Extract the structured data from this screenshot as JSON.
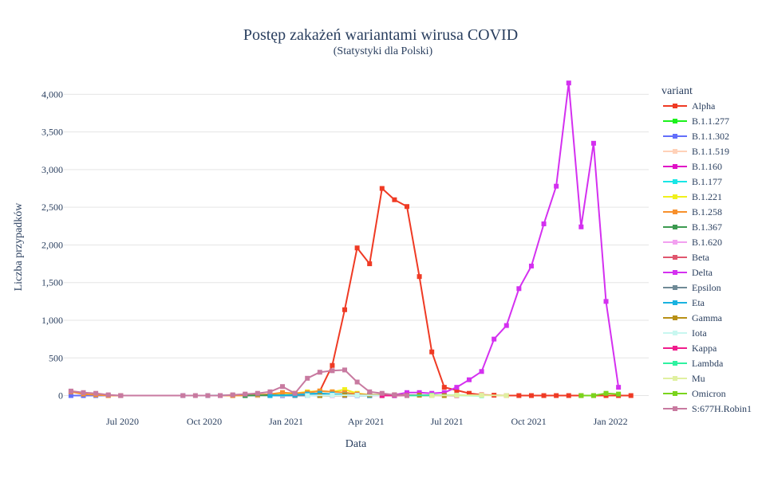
{
  "chart_data": {
    "type": "line",
    "title": "Postęp zakażeń wariantami wirusa COVID",
    "subtitle": "(Statystyki dla Polski)",
    "xlabel": "Data",
    "ylabel": "Liczba przypadków",
    "legend_title": "variant",
    "legend_position": "right",
    "grid": true,
    "ylim": [
      -100,
      4300
    ],
    "xlim": [
      "2020-04-26",
      "2022-02-13"
    ],
    "y_ticks": [
      {
        "value": 0,
        "label": "0"
      },
      {
        "value": 500,
        "label": "500"
      },
      {
        "value": 1000,
        "label": "1,000"
      },
      {
        "value": 1500,
        "label": "1,500"
      },
      {
        "value": 2000,
        "label": "2,000"
      },
      {
        "value": 2500,
        "label": "2,500"
      },
      {
        "value": 3000,
        "label": "3,000"
      },
      {
        "value": 3500,
        "label": "3,500"
      },
      {
        "value": 4000,
        "label": "4,000"
      }
    ],
    "x_ticks": [
      {
        "value": "2020-07-01",
        "label": "Jul 2020"
      },
      {
        "value": "2020-10-01",
        "label": "Oct 2020"
      },
      {
        "value": "2021-01-01",
        "label": "Jan 2021"
      },
      {
        "value": "2021-04-01",
        "label": "Apr 2021"
      },
      {
        "value": "2021-07-01",
        "label": "Jul 2021"
      },
      {
        "value": "2021-10-01",
        "label": "Oct 2021"
      },
      {
        "value": "2022-01-01",
        "label": "Jan 2022"
      }
    ],
    "x": [
      "2020-05-04",
      "2020-05-18",
      "2020-06-01",
      "2020-06-15",
      "2020-06-29",
      "2020-07-13",
      "2020-07-27",
      "2020-08-10",
      "2020-08-24",
      "2020-09-07",
      "2020-09-21",
      "2020-10-05",
      "2020-10-19",
      "2020-11-02",
      "2020-11-16",
      "2020-11-30",
      "2020-12-14",
      "2020-12-28",
      "2021-01-11",
      "2021-01-25",
      "2021-02-08",
      "2021-02-22",
      "2021-03-08",
      "2021-03-22",
      "2021-04-05",
      "2021-04-19",
      "2021-05-03",
      "2021-05-17",
      "2021-05-31",
      "2021-06-14",
      "2021-06-28",
      "2021-07-12",
      "2021-07-26",
      "2021-08-09",
      "2021-08-23",
      "2021-09-06",
      "2021-09-20",
      "2021-10-04",
      "2021-10-18",
      "2021-11-01",
      "2021-11-15",
      "2021-11-29",
      "2021-12-13",
      "2021-12-27",
      "2022-01-10",
      "2022-01-24"
    ],
    "series": [
      {
        "name": "Alpha",
        "color": "#ef3a24",
        "points": [
          [
            "2020-12-14",
            5
          ],
          [
            "2020-12-28",
            10
          ],
          [
            "2021-01-11",
            20
          ],
          [
            "2021-01-25",
            40
          ],
          [
            "2021-02-08",
            60
          ],
          [
            "2021-02-22",
            400
          ],
          [
            "2021-03-08",
            1140
          ],
          [
            "2021-03-22",
            1960
          ],
          [
            "2021-04-05",
            1750
          ],
          [
            "2021-04-19",
            2750
          ],
          [
            "2021-05-03",
            2600
          ],
          [
            "2021-05-17",
            2510
          ],
          [
            "2021-05-31",
            1580
          ],
          [
            "2021-06-14",
            580
          ],
          [
            "2021-06-28",
            110
          ],
          [
            "2021-07-12",
            70
          ],
          [
            "2021-07-26",
            30
          ],
          [
            "2021-08-09",
            10
          ],
          [
            "2021-08-23",
            5
          ],
          [
            "2021-09-06",
            0
          ],
          [
            "2021-09-20",
            0
          ],
          [
            "2021-10-04",
            0
          ],
          [
            "2021-10-18",
            0
          ],
          [
            "2021-11-01",
            0
          ],
          [
            "2021-11-15",
            0
          ],
          [
            "2021-11-29",
            0
          ],
          [
            "2021-12-13",
            0
          ],
          [
            "2021-12-27",
            0
          ],
          [
            "2022-01-10",
            0
          ],
          [
            "2022-01-24",
            0
          ]
        ]
      },
      {
        "name": "B.1.1.277",
        "color": "#1cf21c",
        "points": [
          [
            "2020-11-16",
            0
          ],
          [
            "2020-12-14",
            5
          ],
          [
            "2021-01-11",
            10
          ],
          [
            "2021-02-08",
            10
          ],
          [
            "2021-03-08",
            5
          ],
          [
            "2021-04-05",
            0
          ],
          [
            "2021-05-03",
            0
          ]
        ]
      },
      {
        "name": "B.1.1.302",
        "color": "#636efa",
        "points": [
          [
            "2020-05-04",
            0
          ],
          [
            "2020-05-18",
            0
          ],
          [
            "2020-06-01",
            0
          ],
          [
            "2020-06-15",
            0
          ],
          [
            "2020-06-29",
            0
          ],
          [
            "2020-09-07",
            0
          ],
          [
            "2020-10-05",
            0
          ],
          [
            "2020-11-02",
            0
          ],
          [
            "2020-11-16",
            0
          ],
          [
            "2020-11-30",
            0
          ],
          [
            "2020-12-14",
            0
          ],
          [
            "2020-12-28",
            0
          ],
          [
            "2021-01-11",
            0
          ],
          [
            "2021-01-25",
            0
          ],
          [
            "2021-02-08",
            0
          ],
          [
            "2021-02-22",
            0
          ],
          [
            "2021-03-08",
            0
          ],
          [
            "2021-03-22",
            0
          ],
          [
            "2021-04-05",
            0
          ],
          [
            "2021-04-19",
            0
          ],
          [
            "2021-05-03",
            0
          ]
        ]
      },
      {
        "name": "B.1.1.519",
        "color": "#ffd1b8",
        "points": [
          [
            "2020-11-30",
            0
          ],
          [
            "2020-12-14",
            5
          ],
          [
            "2020-12-28",
            10
          ],
          [
            "2021-01-11",
            20
          ],
          [
            "2021-01-25",
            30
          ],
          [
            "2021-02-08",
            30
          ],
          [
            "2021-02-22",
            20
          ],
          [
            "2021-03-08",
            10
          ],
          [
            "2021-03-22",
            5
          ],
          [
            "2021-04-05",
            0
          ]
        ]
      },
      {
        "name": "B.1.160",
        "color": "#e010c6",
        "points": [
          [
            "2020-10-19",
            0
          ],
          [
            "2020-11-16",
            5
          ],
          [
            "2020-12-14",
            10
          ],
          [
            "2021-01-11",
            15
          ],
          [
            "2021-02-08",
            10
          ],
          [
            "2021-03-08",
            5
          ],
          [
            "2021-04-05",
            0
          ],
          [
            "2021-05-03",
            0
          ]
        ]
      },
      {
        "name": "B.1.177",
        "color": "#19e6e6",
        "points": [
          [
            "2020-10-05",
            0
          ],
          [
            "2020-11-02",
            5
          ],
          [
            "2020-11-30",
            10
          ],
          [
            "2020-12-28",
            20
          ],
          [
            "2021-01-25",
            30
          ],
          [
            "2021-02-22",
            20
          ],
          [
            "2021-03-22",
            10
          ],
          [
            "2021-04-19",
            0
          ]
        ]
      },
      {
        "name": "B.1.221",
        "color": "#f0f01c",
        "points": [
          [
            "2020-11-02",
            0
          ],
          [
            "2020-12-14",
            10
          ],
          [
            "2021-01-11",
            30
          ],
          [
            "2021-01-25",
            50
          ],
          [
            "2021-02-08",
            60
          ],
          [
            "2021-02-22",
            50
          ],
          [
            "2021-03-08",
            80
          ],
          [
            "2021-03-22",
            30
          ],
          [
            "2021-04-05",
            10
          ],
          [
            "2021-04-19",
            0
          ]
        ]
      },
      {
        "name": "B.1.258",
        "color": "#f7902c",
        "points": [
          [
            "2020-05-04",
            50
          ],
          [
            "2020-05-18",
            20
          ],
          [
            "2020-06-01",
            10
          ],
          [
            "2020-06-15",
            0
          ],
          [
            "2020-06-29",
            0
          ],
          [
            "2020-11-02",
            0
          ],
          [
            "2020-11-30",
            10
          ],
          [
            "2020-12-14",
            20
          ],
          [
            "2020-12-28",
            40
          ],
          [
            "2021-01-11",
            30
          ],
          [
            "2021-01-25",
            40
          ],
          [
            "2021-02-08",
            60
          ],
          [
            "2021-02-22",
            50
          ],
          [
            "2021-03-08",
            40
          ],
          [
            "2021-03-22",
            20
          ],
          [
            "2021-04-05",
            10
          ],
          [
            "2021-04-19",
            0
          ]
        ]
      },
      {
        "name": "B.1.367",
        "color": "#3c9a50",
        "points": [
          [
            "2020-11-16",
            0
          ],
          [
            "2020-12-14",
            5
          ],
          [
            "2021-01-11",
            5
          ],
          [
            "2021-02-08",
            0
          ]
        ]
      },
      {
        "name": "B.1.620",
        "color": "#f2a0f0",
        "points": [
          [
            "2021-02-22",
            0
          ],
          [
            "2021-03-22",
            5
          ],
          [
            "2021-04-19",
            10
          ],
          [
            "2021-05-17",
            5
          ],
          [
            "2021-06-14",
            0
          ]
        ]
      },
      {
        "name": "Beta",
        "color": "#e0566e",
        "points": [
          [
            "2021-01-25",
            0
          ],
          [
            "2021-02-22",
            5
          ],
          [
            "2021-03-22",
            10
          ],
          [
            "2021-04-19",
            5
          ],
          [
            "2021-05-17",
            0
          ]
        ]
      },
      {
        "name": "Delta",
        "color": "#d430f0",
        "points": [
          [
            "2021-04-05",
            0
          ],
          [
            "2021-04-19",
            0
          ],
          [
            "2021-05-03",
            10
          ],
          [
            "2021-05-17",
            40
          ],
          [
            "2021-05-31",
            40
          ],
          [
            "2021-06-14",
            30
          ],
          [
            "2021-06-28",
            40
          ],
          [
            "2021-07-12",
            110
          ],
          [
            "2021-07-26",
            210
          ],
          [
            "2021-08-09",
            320
          ],
          [
            "2021-08-23",
            750
          ],
          [
            "2021-09-06",
            930
          ],
          [
            "2021-09-20",
            1420
          ],
          [
            "2021-10-04",
            1720
          ],
          [
            "2021-10-18",
            2280
          ],
          [
            "2021-11-01",
            2780
          ],
          [
            "2021-11-15",
            4150
          ],
          [
            "2021-11-29",
            2240
          ],
          [
            "2021-12-13",
            3350
          ],
          [
            "2021-12-27",
            1250
          ],
          [
            "2022-01-10",
            110
          ]
        ]
      },
      {
        "name": "Epsilon",
        "color": "#6f8a96",
        "points": [
          [
            "2021-01-11",
            0
          ],
          [
            "2021-02-08",
            5
          ],
          [
            "2021-03-08",
            5
          ],
          [
            "2021-04-05",
            0
          ]
        ]
      },
      {
        "name": "Eta",
        "color": "#19b2e0",
        "points": [
          [
            "2020-12-14",
            0
          ],
          [
            "2021-01-11",
            10
          ],
          [
            "2021-01-25",
            20
          ],
          [
            "2021-02-08",
            30
          ],
          [
            "2021-02-22",
            20
          ],
          [
            "2021-03-08",
            10
          ],
          [
            "2021-03-22",
            5
          ],
          [
            "2021-04-05",
            0
          ]
        ]
      },
      {
        "name": "Gamma",
        "color": "#b89016",
        "points": [
          [
            "2021-02-08",
            0
          ],
          [
            "2021-03-08",
            5
          ],
          [
            "2021-04-05",
            10
          ],
          [
            "2021-05-03",
            10
          ],
          [
            "2021-05-31",
            5
          ],
          [
            "2021-06-28",
            0
          ]
        ]
      },
      {
        "name": "Iota",
        "color": "#c8f7f0",
        "points": [
          [
            "2021-01-25",
            0
          ],
          [
            "2021-02-22",
            5
          ],
          [
            "2021-03-22",
            5
          ],
          [
            "2021-04-19",
            0
          ]
        ]
      },
      {
        "name": "Kappa",
        "color": "#f01c8c",
        "points": [
          [
            "2021-04-19",
            0
          ],
          [
            "2021-05-17",
            5
          ],
          [
            "2021-06-14",
            5
          ],
          [
            "2021-07-12",
            0
          ]
        ]
      },
      {
        "name": "Lambda",
        "color": "#2ef2a0",
        "points": [
          [
            "2021-05-17",
            0
          ],
          [
            "2021-06-14",
            5
          ],
          [
            "2021-07-12",
            5
          ],
          [
            "2021-08-09",
            0
          ]
        ]
      },
      {
        "name": "Mu",
        "color": "#e0f0a0",
        "points": [
          [
            "2021-06-14",
            0
          ],
          [
            "2021-07-12",
            5
          ],
          [
            "2021-08-09",
            5
          ],
          [
            "2021-09-06",
            0
          ]
        ]
      },
      {
        "name": "Omicron",
        "color": "#7ad41c",
        "points": [
          [
            "2021-11-29",
            0
          ],
          [
            "2021-12-13",
            0
          ],
          [
            "2021-12-27",
            30
          ],
          [
            "2022-01-10",
            20
          ]
        ]
      },
      {
        "name": "S:677H.Robin1",
        "color": "#c87aa0",
        "points": [
          [
            "2020-05-04",
            60
          ],
          [
            "2020-05-18",
            40
          ],
          [
            "2020-06-01",
            30
          ],
          [
            "2020-06-15",
            10
          ],
          [
            "2020-06-29",
            0
          ],
          [
            "2020-09-07",
            0
          ],
          [
            "2020-09-21",
            0
          ],
          [
            "2020-10-05",
            0
          ],
          [
            "2020-10-19",
            0
          ],
          [
            "2020-11-02",
            10
          ],
          [
            "2020-11-16",
            20
          ],
          [
            "2020-11-30",
            30
          ],
          [
            "2020-12-14",
            50
          ],
          [
            "2020-12-28",
            120
          ],
          [
            "2021-01-11",
            30
          ],
          [
            "2021-01-25",
            230
          ],
          [
            "2021-02-08",
            310
          ],
          [
            "2021-02-22",
            330
          ],
          [
            "2021-03-08",
            340
          ],
          [
            "2021-03-22",
            180
          ],
          [
            "2021-04-05",
            50
          ],
          [
            "2021-04-19",
            30
          ],
          [
            "2021-05-03",
            10
          ],
          [
            "2021-05-17",
            0
          ]
        ]
      }
    ]
  }
}
